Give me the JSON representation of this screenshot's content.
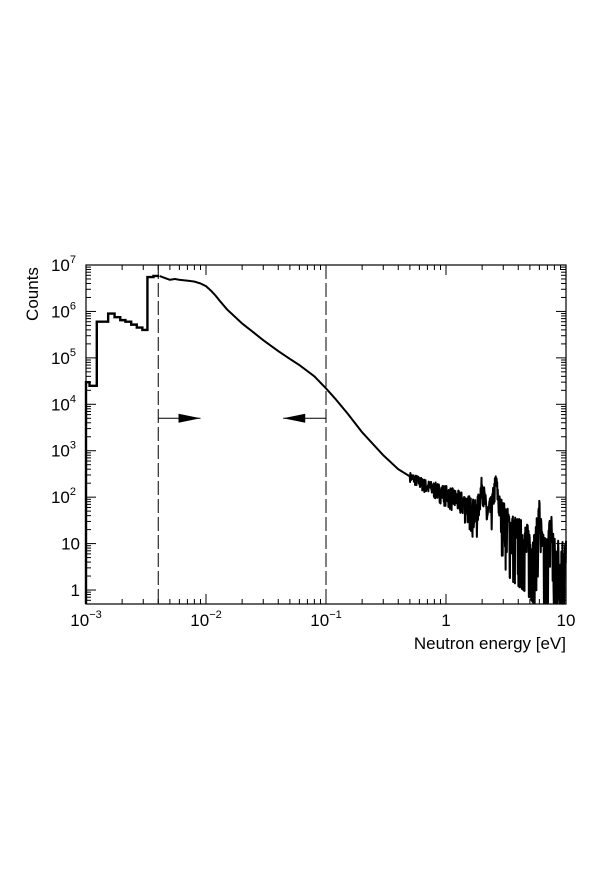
{
  "chart_data": {
    "type": "line",
    "title": "",
    "xlabel": "Neutron energy [eV]",
    "ylabel": "Counts",
    "x_scale": "log",
    "y_scale": "log",
    "xlim": [
      0.001,
      10
    ],
    "ylim": [
      0.5,
      10000000
    ],
    "grid": false,
    "x_ticks": [
      {
        "value": 0.001,
        "base": "10",
        "exp": "−3"
      },
      {
        "value": 0.01,
        "base": "10",
        "exp": "−2"
      },
      {
        "value": 0.1,
        "base": "10",
        "exp": "−1"
      },
      {
        "value": 1,
        "base": "1",
        "exp": ""
      },
      {
        "value": 10,
        "base": "10",
        "exp": ""
      }
    ],
    "y_ticks": [
      {
        "value": 1,
        "base": "1",
        "exp": ""
      },
      {
        "value": 10,
        "base": "10",
        "exp": ""
      },
      {
        "value": 100,
        "base": "10",
        "exp": "2"
      },
      {
        "value": 1000,
        "base": "10",
        "exp": "3"
      },
      {
        "value": 10000,
        "base": "10",
        "exp": "4"
      },
      {
        "value": 100000,
        "base": "10",
        "exp": "5"
      },
      {
        "value": 1000000,
        "base": "10",
        "exp": "6"
      },
      {
        "value": 10000000,
        "base": "10",
        "exp": "7"
      }
    ],
    "series": [
      {
        "color": "#000000",
        "histogram_bins": [
          {
            "x0": 0.001,
            "x1": 0.00107,
            "y": 30000
          },
          {
            "x0": 0.00107,
            "x1": 0.00123,
            "y": 25000
          },
          {
            "x0": 0.00123,
            "x1": 0.00153,
            "y": 600000
          },
          {
            "x0": 0.00153,
            "x1": 0.00173,
            "y": 900000
          },
          {
            "x0": 0.00173,
            "x1": 0.00193,
            "y": 750000
          },
          {
            "x0": 0.00193,
            "x1": 0.00213,
            "y": 650000
          },
          {
            "x0": 0.00213,
            "x1": 0.00238,
            "y": 600000
          },
          {
            "x0": 0.00238,
            "x1": 0.00265,
            "y": 520000
          },
          {
            "x0": 0.00265,
            "x1": 0.00295,
            "y": 450000
          },
          {
            "x0": 0.00295,
            "x1": 0.00325,
            "y": 400000
          },
          {
            "x0": 0.00325,
            "x1": 0.00365,
            "y": 5500000
          },
          {
            "x0": 0.00365,
            "x1": 0.00405,
            "y": 5800000
          }
        ],
        "curve": [
          [
            0.0041,
            5800000
          ],
          [
            0.0045,
            5300000
          ],
          [
            0.005,
            4800000
          ],
          [
            0.0055,
            5000000
          ],
          [
            0.006,
            4800000
          ],
          [
            0.007,
            4600000
          ],
          [
            0.008,
            4400000
          ],
          [
            0.009,
            4000000
          ],
          [
            0.01,
            3500000
          ],
          [
            0.011,
            2800000
          ],
          [
            0.012,
            2200000
          ],
          [
            0.013,
            1700000
          ],
          [
            0.015,
            1100000
          ],
          [
            0.02,
            550000
          ],
          [
            0.025,
            350000
          ],
          [
            0.03,
            240000
          ],
          [
            0.04,
            140000
          ],
          [
            0.05,
            95000
          ],
          [
            0.06,
            70000
          ],
          [
            0.08,
            40000
          ],
          [
            0.1,
            22000
          ],
          [
            0.12,
            13000
          ],
          [
            0.15,
            6500
          ],
          [
            0.2,
            2500
          ],
          [
            0.3,
            800
          ],
          [
            0.4,
            400
          ],
          [
            0.5,
            280
          ],
          [
            0.7,
            170
          ],
          [
            1,
            120
          ],
          [
            1.5,
            70
          ],
          [
            1.8,
            45
          ],
          [
            2.0,
            200
          ],
          [
            2.2,
            40
          ],
          [
            2.4,
            60
          ],
          [
            2.6,
            230
          ],
          [
            2.8,
            60
          ],
          [
            3.5,
            20
          ],
          [
            4.5,
            12
          ],
          [
            5.5,
            6
          ],
          [
            6.0,
            50
          ],
          [
            6.4,
            5
          ],
          [
            7.0,
            5
          ],
          [
            7.5,
            30
          ],
          [
            8,
            4
          ],
          [
            10,
            4
          ]
        ],
        "noise_from": 0.5
      }
    ],
    "annotations": [
      {
        "type": "vline",
        "style": "dashed",
        "x": 0.004
      },
      {
        "type": "vline",
        "style": "dashed",
        "x": 0.1
      },
      {
        "type": "arrow",
        "y": 5000,
        "from_x": 0.004,
        "to_x": 0.009,
        "direction": "right"
      },
      {
        "type": "arrow",
        "y": 5000,
        "from_x": 0.1,
        "to_x": 0.044,
        "direction": "left"
      }
    ]
  }
}
